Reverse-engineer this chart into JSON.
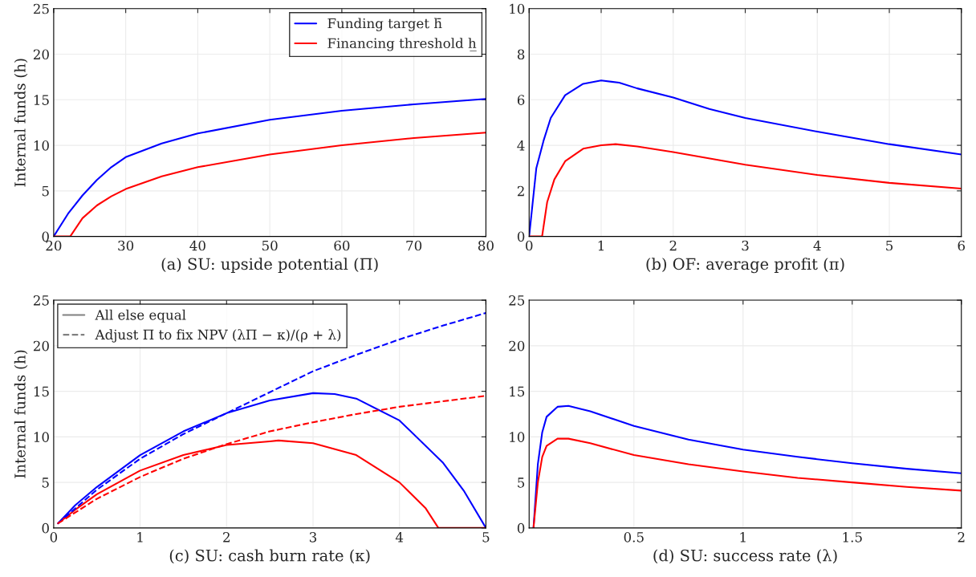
{
  "chart_data": [
    {
      "type": "line",
      "ylabel": "Internal funds (h)",
      "xlabel": "(a) SU: upside potential (Π)",
      "xlim": [
        20,
        80
      ],
      "xticks": [
        20,
        30,
        40,
        50,
        60,
        70,
        80
      ],
      "ylim": [
        0,
        25
      ],
      "yticks": [
        0,
        5,
        10,
        15,
        20,
        25
      ],
      "grid": true,
      "legend": "top right",
      "line_style": "solid",
      "series": [
        {
          "name": "Funding target h̄",
          "color": "#0000ff",
          "x": [
            20,
            22,
            24,
            26,
            28,
            30,
            35,
            40,
            50,
            60,
            70,
            80
          ],
          "values": [
            0,
            2.5,
            4.5,
            6.2,
            7.6,
            8.7,
            10.2,
            11.3,
            12.8,
            13.8,
            14.5,
            15.1
          ]
        },
        {
          "name": "Financing threshold h̲",
          "color": "#ff0000",
          "x": [
            20,
            22.3,
            24,
            26,
            28,
            30,
            35,
            40,
            50,
            60,
            70,
            80
          ],
          "values": [
            0,
            0,
            2.0,
            3.4,
            4.4,
            5.2,
            6.6,
            7.6,
            9.0,
            10.0,
            10.8,
            11.4
          ]
        }
      ]
    },
    {
      "type": "line",
      "xlabel": "(b) OF: average profit (π)",
      "xlim": [
        0,
        6
      ],
      "xticks": [
        0,
        1,
        2,
        3,
        4,
        5,
        6
      ],
      "ylim": [
        0,
        10
      ],
      "yticks": [
        0,
        2,
        4,
        6,
        8,
        10
      ],
      "grid": true,
      "line_style": "solid",
      "series": [
        {
          "color": "#0000ff",
          "x": [
            0,
            0.1,
            0.2,
            0.3,
            0.5,
            0.75,
            1.0,
            1.25,
            1.5,
            2,
            2.5,
            3,
            4,
            5,
            6
          ],
          "values": [
            0,
            3.0,
            4.2,
            5.2,
            6.2,
            6.7,
            6.85,
            6.75,
            6.5,
            6.1,
            5.6,
            5.2,
            4.6,
            4.05,
            3.6
          ]
        },
        {
          "color": "#ff0000",
          "x": [
            0,
            0.18,
            0.25,
            0.35,
            0.5,
            0.75,
            1.0,
            1.2,
            1.5,
            2,
            3,
            4,
            5,
            6
          ],
          "values": [
            0,
            0,
            1.5,
            2.5,
            3.3,
            3.85,
            4.0,
            4.05,
            3.95,
            3.7,
            3.15,
            2.7,
            2.35,
            2.1
          ]
        }
      ]
    },
    {
      "type": "line",
      "ylabel": "Internal funds (h)",
      "xlabel": "(c) SU: cash burn rate (κ)",
      "xlim": [
        0,
        5
      ],
      "xticks": [
        0,
        1,
        2,
        3,
        4,
        5
      ],
      "ylim": [
        0,
        25
      ],
      "yticks": [
        0,
        5,
        10,
        15,
        20,
        25
      ],
      "grid": true,
      "legend": "top left",
      "series": [
        {
          "color": "#0000ff",
          "line_style": "solid",
          "x": [
            0.05,
            0.25,
            0.5,
            1,
            1.5,
            2,
            2.5,
            3,
            3.25,
            3.5,
            4,
            4.5,
            4.75,
            5
          ],
          "values": [
            0.5,
            2.5,
            4.5,
            8.0,
            10.6,
            12.6,
            14.0,
            14.8,
            14.7,
            14.2,
            11.8,
            7.2,
            4,
            0
          ]
        },
        {
          "color": "#ff0000",
          "line_style": "solid",
          "x": [
            0.05,
            0.25,
            0.5,
            1,
            1.5,
            2,
            2.5,
            2.6,
            3,
            3.5,
            4,
            4.3,
            4.45,
            5
          ],
          "values": [
            0.5,
            2.0,
            3.7,
            6.3,
            8.0,
            9.1,
            9.5,
            9.6,
            9.3,
            8.0,
            5.0,
            2.2,
            0,
            0
          ]
        },
        {
          "color": "#0000ff",
          "line_style": "dashed",
          "x": [
            0.05,
            0.5,
            1,
            1.5,
            2,
            2.5,
            3,
            3.5,
            4,
            4.5,
            5
          ],
          "values": [
            0.5,
            4.2,
            7.6,
            10.3,
            12.6,
            14.9,
            17.2,
            19.0,
            20.7,
            22.2,
            23.6
          ]
        },
        {
          "color": "#ff0000",
          "line_style": "dashed",
          "x": [
            0.05,
            0.5,
            1,
            1.5,
            2,
            2.5,
            3,
            3.5,
            4,
            4.5,
            5
          ],
          "values": [
            0.5,
            3.2,
            5.6,
            7.6,
            9.2,
            10.6,
            11.6,
            12.5,
            13.3,
            13.9,
            14.5
          ]
        },
        {
          "name": "All else equal",
          "color": "#808080",
          "line_style": "solid"
        },
        {
          "name": "Adjust Π to fix NPV (λΠ − κ)/(ρ + λ)",
          "color": "#808080",
          "line_style": "dashed"
        }
      ]
    },
    {
      "type": "line",
      "xlabel": "(d) SU: success rate (λ)",
      "xlim": [
        0.02,
        2
      ],
      "xticks": [
        0.5,
        1,
        1.5,
        2
      ],
      "ylim": [
        0,
        25
      ],
      "yticks": [
        0,
        5,
        10,
        15,
        20,
        25
      ],
      "grid": true,
      "line_style": "solid",
      "series": [
        {
          "color": "#0000ff",
          "x": [
            0.04,
            0.06,
            0.08,
            0.1,
            0.15,
            0.2,
            0.3,
            0.5,
            0.75,
            1,
            1.25,
            1.5,
            1.75,
            2
          ],
          "values": [
            0,
            7,
            10.5,
            12.2,
            13.3,
            13.4,
            12.8,
            11.2,
            9.7,
            8.6,
            7.8,
            7.1,
            6.5,
            6.0
          ]
        },
        {
          "color": "#ff0000",
          "x": [
            0.04,
            0.06,
            0.08,
            0.1,
            0.15,
            0.2,
            0.3,
            0.5,
            0.75,
            1,
            1.25,
            1.5,
            1.75,
            2
          ],
          "values": [
            0,
            5,
            7.8,
            9.0,
            9.8,
            9.8,
            9.3,
            8.0,
            7.0,
            6.2,
            5.5,
            5.0,
            4.5,
            4.1
          ]
        }
      ]
    }
  ]
}
